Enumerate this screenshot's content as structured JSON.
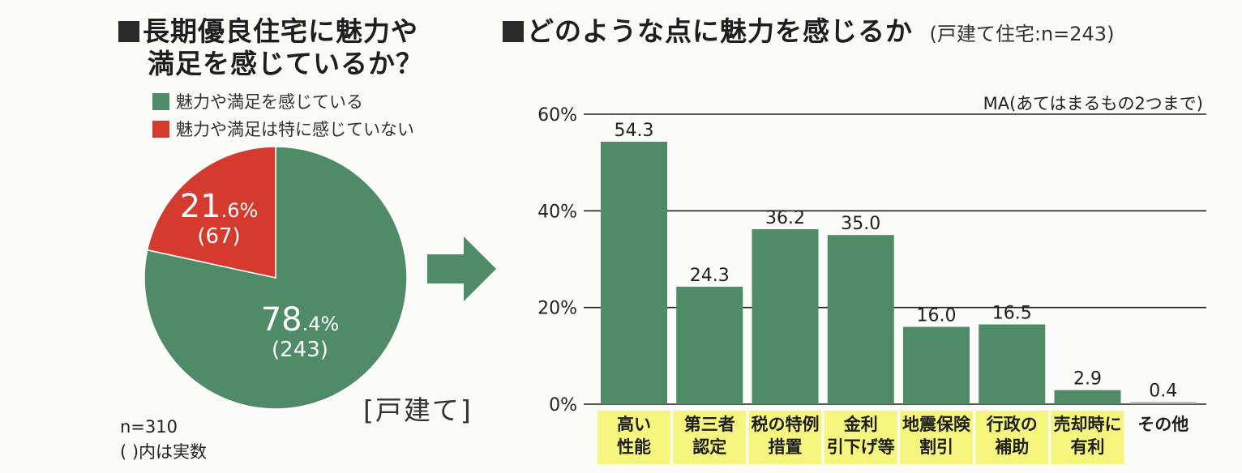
{
  "left": {
    "title_line1": "長期優良住宅に魅力や",
    "title_line2": "満足を感じているか？",
    "legend": [
      {
        "label": "魅力や満足を感じている",
        "color": "#4f8b66"
      },
      {
        "label": "魅力や満足は特に感じていない",
        "color": "#d43a2e"
      }
    ],
    "note_n": "n=310",
    "note_paren": "( )内は実数",
    "house_type": "[戸建て]"
  },
  "right": {
    "title": "どのような点に魅力を感じるか",
    "subtitle": "(戸建て住宅:n=243)",
    "ma_note": "MA(あてはまるもの2つまで)"
  },
  "chart_data": [
    {
      "type": "pie",
      "slices": [
        {
          "label": "魅力や満足を感じている",
          "percent": 78.4,
          "count": 243,
          "color": "#4f8b66",
          "pct_main": "78",
          "pct_dec": ".4%",
          "count_label": "(243)"
        },
        {
          "label": "魅力や満足は特に感じていない",
          "percent": 21.6,
          "count": 67,
          "color": "#d43a2e",
          "pct_main": "21",
          "pct_dec": ".6%",
          "count_label": "(67)"
        }
      ]
    },
    {
      "type": "bar",
      "categories": [
        [
          "高い",
          "性能"
        ],
        [
          "第三者",
          "認定"
        ],
        [
          "税の特例",
          "措置"
        ],
        [
          "金利",
          "引下げ等"
        ],
        [
          "地震保険",
          "割引"
        ],
        [
          "行政の",
          "補助"
        ],
        [
          "売却時に",
          "有利"
        ],
        [
          "その他"
        ]
      ],
      "values": [
        54.3,
        24.3,
        36.2,
        35.0,
        16.0,
        16.5,
        2.9,
        0.4
      ],
      "value_labels": [
        "54.3",
        "24.3",
        "36.2",
        "35.0",
        "16.0",
        "16.5",
        "2.9",
        "0.4"
      ],
      "highlighted": [
        true,
        true,
        true,
        true,
        true,
        true,
        true,
        false
      ],
      "yticks": [
        "0%",
        "20%",
        "40%",
        "60%"
      ],
      "ytick_values": [
        0,
        20,
        40,
        60
      ],
      "ylim": [
        0,
        60
      ],
      "bar_color": "#4f8b66",
      "other_color": "#9aa39d",
      "highlight_color": "#f5f56a",
      "grid": true
    }
  ]
}
